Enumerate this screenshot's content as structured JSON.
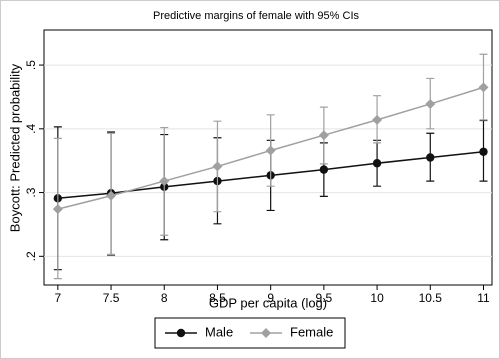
{
  "chart_data": {
    "type": "line",
    "title": "Predictive margins of female with 95% CIs",
    "x_label": "GDP per capita (log)",
    "y_label": "Boycott: Predicted probability",
    "x": [
      7,
      7.5,
      8,
      8.5,
      9,
      9.5,
      10,
      10.5,
      11
    ],
    "xlim": [
      6.87,
      11.08
    ],
    "xticks": [
      7,
      7.5,
      8,
      8.5,
      9,
      9.5,
      10,
      10.5,
      11
    ],
    "ylim": [
      0.155,
      0.555
    ],
    "yticks": [
      {
        "value": 0.2,
        "label": ".2"
      },
      {
        "value": 0.3,
        "label": ".3"
      },
      {
        "value": 0.4,
        "label": ".4"
      },
      {
        "value": 0.5,
        "label": ".5"
      }
    ],
    "grid": true,
    "legend_position": "bottom",
    "series": [
      {
        "name": "Male",
        "color": "#111111",
        "marker": "circle",
        "values": [
          0.291,
          0.299,
          0.309,
          0.318,
          0.327,
          0.336,
          0.346,
          0.355,
          0.364
        ],
        "lower": [
          0.179,
          0.202,
          0.226,
          0.251,
          0.272,
          0.294,
          0.31,
          0.318,
          0.318
        ],
        "upper": [
          0.403,
          0.395,
          0.391,
          0.386,
          0.382,
          0.378,
          0.382,
          0.393,
          0.413
        ]
      },
      {
        "name": "Female",
        "color": "#a0a0a0",
        "marker": "diamond",
        "values": [
          0.274,
          0.295,
          0.318,
          0.341,
          0.366,
          0.39,
          0.414,
          0.439,
          0.465
        ],
        "lower": [
          0.165,
          0.203,
          0.233,
          0.27,
          0.31,
          0.345,
          0.378,
          0.4,
          0.414
        ],
        "upper": [
          0.385,
          0.393,
          0.402,
          0.412,
          0.422,
          0.434,
          0.452,
          0.479,
          0.517
        ]
      }
    ]
  }
}
